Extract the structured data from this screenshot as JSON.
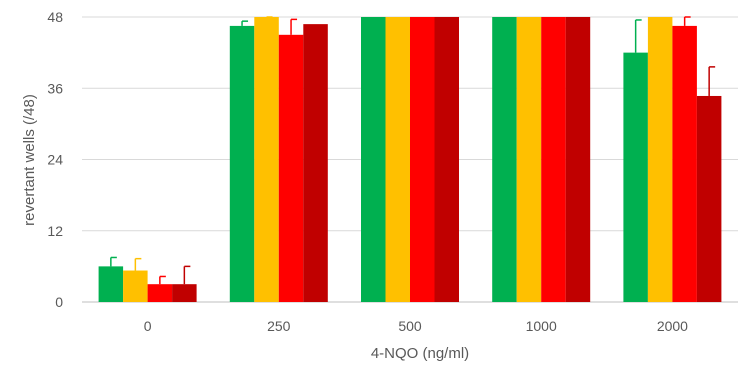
{
  "chart_data": {
    "type": "bar",
    "title": "",
    "xlabel": "4-NQO (ng/ml)",
    "ylabel": "revertant wells (/48)",
    "ylim": [
      0,
      48
    ],
    "yticks": [
      0,
      12,
      24,
      36,
      48
    ],
    "grid": true,
    "legend": "none",
    "categories": [
      "0",
      "250",
      "500",
      "1000",
      "2000"
    ],
    "series": [
      {
        "color": "#00b050",
        "values": [
          6,
          46.5,
          48,
          48,
          42
        ],
        "error": [
          1.5,
          0.8,
          0,
          0,
          5.5
        ]
      },
      {
        "color": "#ffc000",
        "values": [
          5.3,
          48,
          48,
          48,
          48
        ],
        "error": [
          2,
          0.4,
          0,
          0,
          0
        ]
      },
      {
        "color": "#ff0000",
        "values": [
          3,
          45,
          48,
          48,
          46.5
        ],
        "error": [
          1.3,
          2.6,
          0,
          0,
          2.2
        ]
      },
      {
        "color": "#c00000",
        "values": [
          3,
          46.8,
          48,
          48,
          34.7
        ],
        "error": [
          3,
          0,
          0,
          0,
          4.9
        ]
      }
    ]
  }
}
